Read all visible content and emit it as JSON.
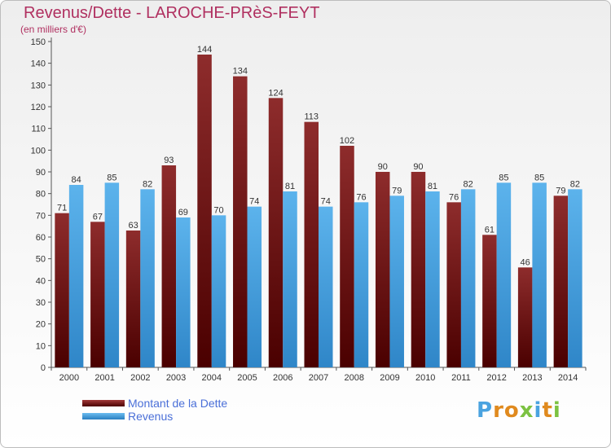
{
  "header": {
    "title": "Revenus/Dette - LAROCHE-PRèS-FEYT",
    "subtitle": "(en milliers d'€)"
  },
  "chart_data": {
    "type": "bar",
    "categories": [
      "2000",
      "2001",
      "2002",
      "2003",
      "2004",
      "2005",
      "2006",
      "2007",
      "2008",
      "2009",
      "2010",
      "2011",
      "2012",
      "2013",
      "2014"
    ],
    "series": [
      {
        "name": "Montant de la Dette",
        "color": "#7a1a1a",
        "values": [
          71,
          67,
          63,
          93,
          144,
          134,
          124,
          113,
          102,
          90,
          90,
          76,
          61,
          46,
          79
        ]
      },
      {
        "name": "Revenus",
        "color": "#4aa3e0",
        "values": [
          84,
          85,
          82,
          69,
          70,
          74,
          81,
          74,
          76,
          79,
          81,
          82,
          85,
          85,
          82
        ]
      }
    ],
    "ylim": [
      0,
      150
    ],
    "yticks": [
      0,
      10,
      20,
      30,
      40,
      50,
      60,
      70,
      80,
      90,
      100,
      110,
      120,
      130,
      140,
      150
    ],
    "grid": false,
    "legend_position": "bottom-left"
  },
  "logo": {
    "letters": [
      {
        "ch": "P",
        "color": "#4aa3e0"
      },
      {
        "ch": "r",
        "color": "#e08a1e"
      },
      {
        "ch": "o",
        "color": "#e08a1e"
      },
      {
        "ch": "x",
        "color": "#7cc242"
      },
      {
        "ch": "i",
        "color": "#4aa3e0"
      },
      {
        "ch": "t",
        "color": "#e08a1e"
      },
      {
        "ch": "i",
        "color": "#7cc242"
      }
    ]
  }
}
